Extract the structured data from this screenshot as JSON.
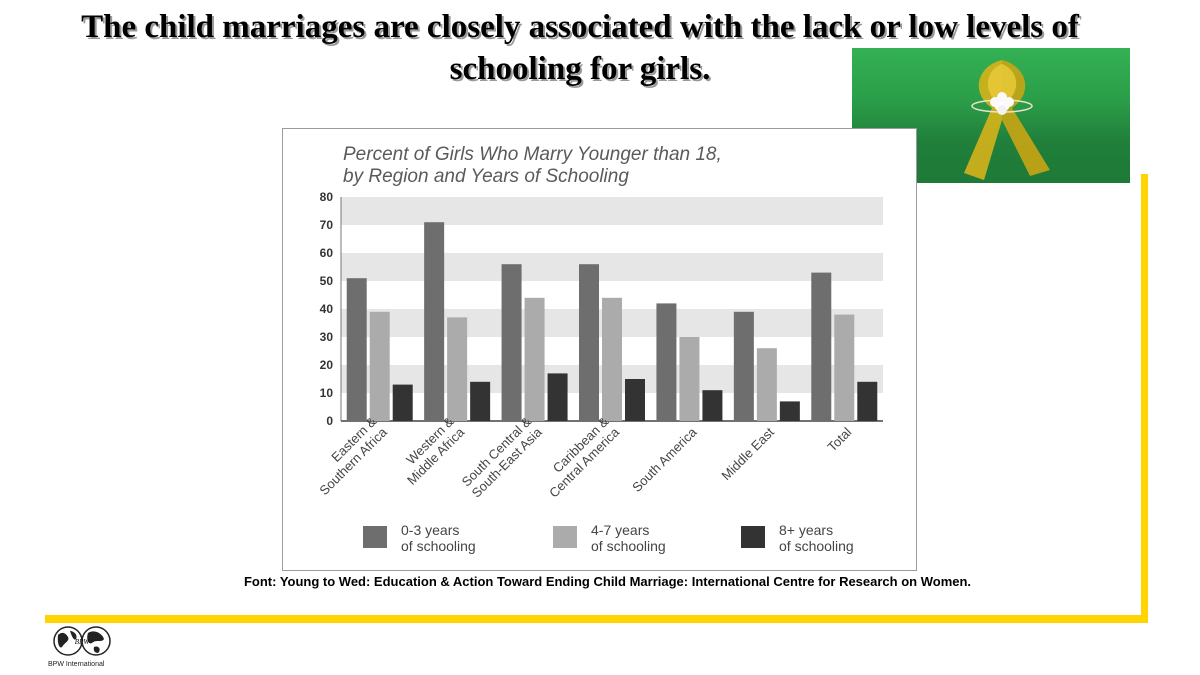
{
  "slide": {
    "title": "The child marriages are closely associated with the lack or low levels of schooling for girls.",
    "source": "Font: Young to Wed: Education & Action Toward Ending Child Marriage: International Centre for Research on Women.",
    "logo_text": "BPW International",
    "logo_mark": "BPW",
    "accent_color": "#ffd400"
  },
  "photo": {
    "icon": "yellow-ribbon-icon"
  },
  "chart_data": {
    "type": "bar",
    "title": "Percent of Girls Who Marry Younger than 18,\nby Region and Years of Schooling",
    "categories": [
      "Eastern &\nSouthern Africa",
      "Western &\nMiddle Africa",
      "South Central &\nSouth-East Asia",
      "Caribbean &\nCentral America",
      "South America",
      "Middle East",
      "Total"
    ],
    "series": [
      {
        "name": "0-3 years\nof schooling",
        "color": "#6e6e6e",
        "values": [
          51,
          71,
          56,
          56,
          42,
          39,
          53
        ]
      },
      {
        "name": "4-7 years\nof schooling",
        "color": "#ababab",
        "values": [
          39,
          37,
          44,
          44,
          30,
          26,
          38
        ]
      },
      {
        "name": "8+ years\nof schooling",
        "color": "#333333",
        "values": [
          13,
          14,
          17,
          15,
          11,
          7,
          14
        ]
      }
    ],
    "yticks": [
      0,
      10,
      20,
      30,
      40,
      50,
      60,
      70,
      80
    ],
    "ylim": [
      0,
      80
    ],
    "grid": "alternating horizontal bands",
    "legend_position": "bottom"
  }
}
